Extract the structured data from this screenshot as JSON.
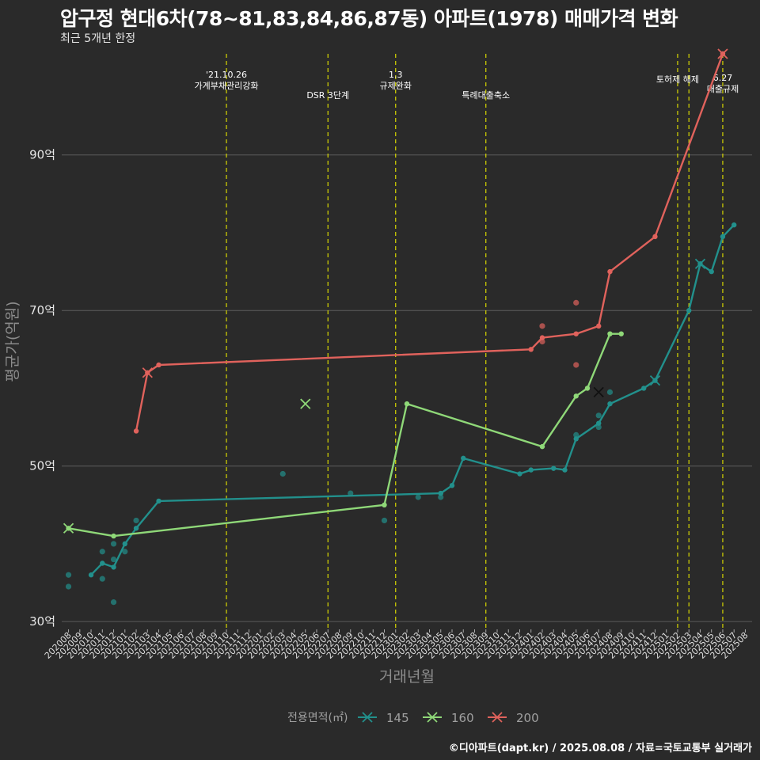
{
  "title": "압구정 현대6차(78~81,83,84,86,87동) 아파트(1978) 매매가격 변화",
  "subtitle": "최근 5개년 한정",
  "caption": "©디아파트(dapt.kr) / 2025.08.08 / 자료=국토교통부 실거래가",
  "chart_data": {
    "type": "line",
    "xlabel": "거래년월",
    "ylabel": "평균가(억원)",
    "categories": [
      "202008",
      "202009",
      "202010",
      "202011",
      "202012",
      "202101",
      "202102",
      "202103",
      "202104",
      "202105",
      "202106",
      "202107",
      "202108",
      "202109",
      "202110",
      "202111",
      "202112",
      "202201",
      "202202",
      "202203",
      "202204",
      "202205",
      "202206",
      "202207",
      "202208",
      "202209",
      "202210",
      "202211",
      "202212",
      "202301",
      "202302",
      "202303",
      "202304",
      "202305",
      "202306",
      "202307",
      "202308",
      "202309",
      "202310",
      "202311",
      "202312",
      "202401",
      "202402",
      "202403",
      "202404",
      "202405",
      "202406",
      "202407",
      "202408",
      "202409",
      "202410",
      "202411",
      "202412",
      "202501",
      "202502",
      "202503",
      "202504",
      "202505",
      "202506",
      "202507",
      "202508"
    ],
    "y_ticks": [
      30,
      50,
      70,
      90
    ],
    "y_tick_labels": [
      "30억",
      "50억",
      "70억",
      "90억"
    ],
    "ylim": [
      29,
      103
    ],
    "grid": true,
    "legend": {
      "title": "전용면적(㎡)",
      "position": "bottom"
    },
    "series": [
      {
        "name": "145",
        "color": "#22908c",
        "line": [
          [
            "202010",
            36.0
          ],
          [
            "202011",
            37.5
          ],
          [
            "202012",
            37.0
          ],
          [
            "202101",
            40.0
          ],
          [
            "202102",
            42.0
          ],
          [
            "202104",
            45.5
          ],
          [
            "202305",
            46.5
          ],
          [
            "202306",
            47.5
          ],
          [
            "202307",
            51.0
          ],
          [
            "202312",
            49.0
          ],
          [
            "202401",
            49.5
          ],
          [
            "202403",
            49.7
          ],
          [
            "202404",
            49.5
          ],
          [
            "202405",
            53.5
          ],
          [
            "202407",
            55.5
          ],
          [
            "202408",
            58.0
          ],
          [
            "202411",
            60.0
          ],
          [
            "202412",
            61.0
          ],
          [
            "202503",
            70.0
          ],
          [
            "202504",
            76.0
          ],
          [
            "202505",
            75.0
          ],
          [
            "202506",
            79.5
          ],
          [
            "202507",
            81.0
          ]
        ],
        "points": [
          [
            "202008",
            36.0
          ],
          [
            "202008",
            34.5
          ],
          [
            "202011",
            39.0
          ],
          [
            "202011",
            35.5
          ],
          [
            "202012",
            40.0
          ],
          [
            "202012",
            38.0
          ],
          [
            "202012",
            32.5
          ],
          [
            "202101",
            39.0
          ],
          [
            "202102",
            43.0
          ],
          [
            "202203",
            49.0
          ],
          [
            "202209",
            46.5
          ],
          [
            "202212",
            43.0
          ],
          [
            "202303",
            46.0
          ],
          [
            "202305",
            46.0
          ],
          [
            "202405",
            54.0
          ],
          [
            "202407",
            55.0
          ],
          [
            "202407",
            56.5
          ],
          [
            "202408",
            59.5
          ]
        ],
        "crosses": [
          [
            "202407",
            59.5
          ],
          [
            "202412",
            61.0
          ],
          [
            "202504",
            76.0
          ]
        ]
      },
      {
        "name": "160",
        "color": "#8fd878",
        "line": [
          [
            "202008",
            42.0
          ],
          [
            "202012",
            41.0
          ],
          [
            "202212",
            45.0
          ],
          [
            "202302",
            58.0
          ],
          [
            "202402",
            52.5
          ],
          [
            "202405",
            59.0
          ],
          [
            "202406",
            60.0
          ],
          [
            "202408",
            67.0
          ],
          [
            "202409",
            67.0
          ]
        ],
        "points": [],
        "crosses": [
          [
            "202008",
            42.0
          ],
          [
            "202205",
            58.0
          ]
        ]
      },
      {
        "name": "200",
        "color": "#e0625c",
        "line": [
          [
            "202102",
            54.5
          ],
          [
            "202103",
            62.0
          ],
          [
            "202104",
            63.0
          ],
          [
            "202401",
            65.0
          ],
          [
            "202402",
            66.5
          ],
          [
            "202405",
            67.0
          ],
          [
            "202407",
            68.0
          ],
          [
            "202408",
            75.0
          ],
          [
            "202412",
            79.5
          ],
          [
            "202506",
            103.0
          ]
        ],
        "points": [
          [
            "202402",
            68.0
          ],
          [
            "202402",
            66.0
          ],
          [
            "202405",
            71.0
          ],
          [
            "202405",
            63.0
          ]
        ],
        "crosses": [
          [
            "202103",
            62.0
          ],
          [
            "202506",
            103.0
          ]
        ]
      }
    ],
    "events": [
      {
        "month": "202110",
        "label": "'21.10.26\n가계부채관리강화",
        "level": 1
      },
      {
        "month": "202207",
        "label": "DSR 3단계",
        "level": 2
      },
      {
        "month": "202301",
        "label": "1.3\n규제완화",
        "level": 1
      },
      {
        "month": "202309",
        "label": "특례대출축소",
        "level": 2
      },
      {
        "month": "202502",
        "label": "토허제 해제",
        "level": 0
      },
      {
        "month": "202503",
        "label": "",
        "level": 0
      },
      {
        "month": "202506",
        "label": "6.27\n대출규제",
        "level": 3
      }
    ]
  }
}
